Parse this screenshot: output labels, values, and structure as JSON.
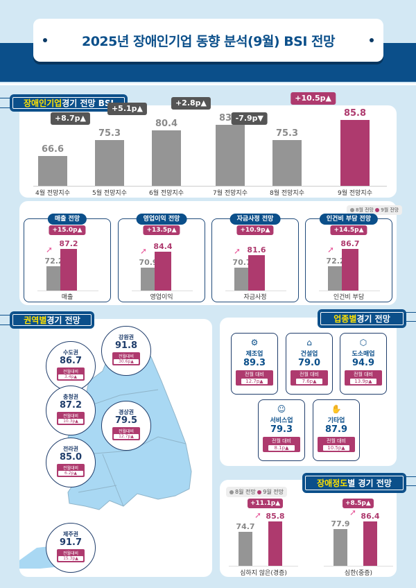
{
  "header": {
    "title": "2025년 장애인기업 동향 분석(9월) BSI 전망"
  },
  "colors": {
    "navy": "#0b4f8a",
    "gray": "#959595",
    "pink": "#ae3a6e",
    "background": "#d3e8f4",
    "map": "#a9d8f3"
  },
  "bsi_section": {
    "title_highlight": "장애인기업",
    "title_rest": " 경기 전망 BSI"
  },
  "legend": {
    "aug": "8월 전망",
    "sep": "9월 전망"
  },
  "chart_data": [
    {
      "type": "bar",
      "title": "장애인기업 경기 전망 BSI",
      "categories": [
        "4월 전망지수",
        "5월 전망지수",
        "6월 전망지수",
        "7월 전망지수",
        "8월 전망지수",
        "9월 전망지수"
      ],
      "values": [
        66.6,
        75.3,
        80.4,
        83.2,
        75.3,
        85.8
      ],
      "value_labels": [
        "66.6",
        "75.3",
        "80.4",
        "83.2",
        "75.3",
        "85.8"
      ],
      "changes": [
        "",
        "+8.7p▲",
        "+5.1p▲",
        "+2.8p▲",
        "-7.9p▼",
        "+10.5p▲"
      ]
    },
    {
      "type": "bar",
      "title": "항목별 전망",
      "categories": [
        "매출",
        "영업이익",
        "자금사정",
        "인건비 부담"
      ],
      "card_titles": [
        "매출 전망",
        "영업이익 전망",
        "자금사정 전망",
        "인건비 부담 전망"
      ],
      "series": [
        {
          "name": "8월 전망",
          "values": [
            72.2,
            70.9,
            70.7,
            72.2
          ],
          "labels": [
            "72.2",
            "70.9",
            "70.7",
            "72.2"
          ]
        },
        {
          "name": "9월 전망",
          "values": [
            87.2,
            84.4,
            81.6,
            86.7
          ],
          "labels": [
            "87.2",
            "84.4",
            "81.6",
            "86.7"
          ]
        }
      ],
      "changes": [
        "+15.0p▲",
        "+13.5p▲",
        "+10.9p▲",
        "+14.5p▲"
      ]
    },
    {
      "type": "bar",
      "title": "장애정도별 경기 전망",
      "categories": [
        "심하지 않은(경증)",
        "심한(중증)"
      ],
      "series": [
        {
          "name": "8월 전망",
          "values": [
            74.7,
            77.9
          ],
          "labels": [
            "74.7",
            "77.9"
          ]
        },
        {
          "name": "9월 전망",
          "values": [
            85.8,
            86.4
          ],
          "labels": [
            "85.8",
            "86.4"
          ]
        }
      ],
      "changes": [
        "+11.1p▲",
        "+8.5p▲"
      ]
    }
  ],
  "region_section": {
    "title_highlight": "권역별",
    "title_rest": " 경기 전망",
    "diff_label": "전월대비",
    "regions": [
      {
        "name": "수도권",
        "value": "86.7",
        "change": "3.4p▲"
      },
      {
        "name": "강원권",
        "value": "91.8",
        "change": "30.6p▲"
      },
      {
        "name": "충청권",
        "value": "87.2",
        "change": "10.3p▲"
      },
      {
        "name": "경상권",
        "value": "79.5",
        "change": "12.7p▲"
      },
      {
        "name": "전라권",
        "value": "85.0",
        "change": "6.2p▲"
      },
      {
        "name": "제주권",
        "value": "91.7",
        "change": "15.3p▲"
      }
    ]
  },
  "industry_section": {
    "title_highlight": "업종별",
    "title_rest": " 경기 전망",
    "diff_label": "전월 대비",
    "items": [
      {
        "name": "제조업",
        "value": "89.3",
        "change": "12.7p▲",
        "icon": "gear-icon",
        "glyph": "⚙"
      },
      {
        "name": "건설업",
        "value": "79.0",
        "change": "7.6p▲",
        "icon": "house-icon",
        "glyph": "⌂"
      },
      {
        "name": "도소매업",
        "value": "94.9",
        "change": "13.9p▲",
        "icon": "package-icon",
        "glyph": "⬡"
      },
      {
        "name": "서비스업",
        "value": "79.3",
        "change": "8.1p▲",
        "icon": "smile-icon",
        "glyph": "☺"
      },
      {
        "name": "기타업",
        "value": "87.9",
        "change": "10.5p▲",
        "icon": "hand-icon",
        "glyph": "✋"
      }
    ]
  },
  "disability_section": {
    "title_highlight": "장애정도",
    "title_rest": "별 경기 전망"
  }
}
